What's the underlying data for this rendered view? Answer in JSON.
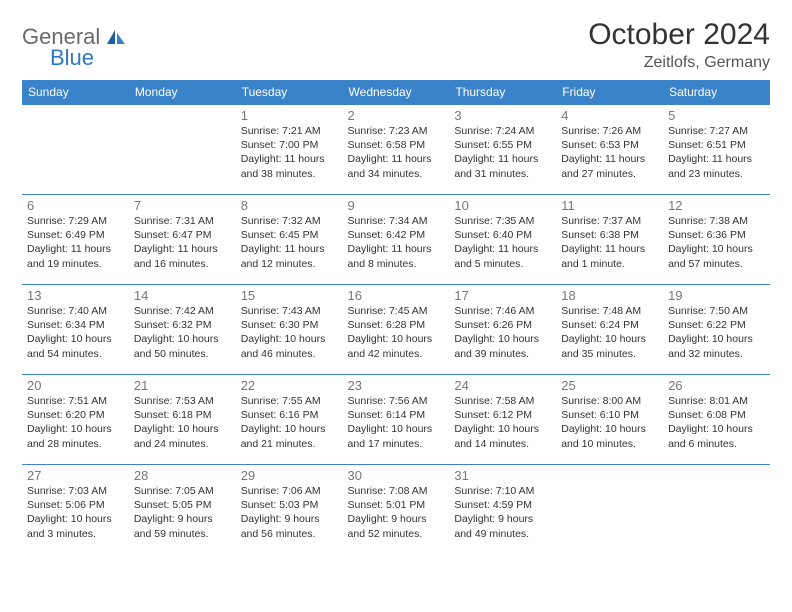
{
  "logo": {
    "general": "General",
    "blue": "Blue"
  },
  "title": "October 2024",
  "location": "Zeitlofs, Germany",
  "colors": {
    "header_bg": "#3a82c9",
    "header_text": "#ffffff",
    "border": "#3a82c9",
    "daynum": "#777777",
    "body_text": "#333333",
    "logo_gray": "#6b6b6b",
    "logo_blue": "#2f79c4",
    "page_bg": "#ffffff"
  },
  "day_headers": [
    "Sunday",
    "Monday",
    "Tuesday",
    "Wednesday",
    "Thursday",
    "Friday",
    "Saturday"
  ],
  "weeks": [
    [
      null,
      null,
      {
        "n": "1",
        "sr": "7:21 AM",
        "ss": "7:00 PM",
        "dl": "11 hours and 38 minutes."
      },
      {
        "n": "2",
        "sr": "7:23 AM",
        "ss": "6:58 PM",
        "dl": "11 hours and 34 minutes."
      },
      {
        "n": "3",
        "sr": "7:24 AM",
        "ss": "6:55 PM",
        "dl": "11 hours and 31 minutes."
      },
      {
        "n": "4",
        "sr": "7:26 AM",
        "ss": "6:53 PM",
        "dl": "11 hours and 27 minutes."
      },
      {
        "n": "5",
        "sr": "7:27 AM",
        "ss": "6:51 PM",
        "dl": "11 hours and 23 minutes."
      }
    ],
    [
      {
        "n": "6",
        "sr": "7:29 AM",
        "ss": "6:49 PM",
        "dl": "11 hours and 19 minutes."
      },
      {
        "n": "7",
        "sr": "7:31 AM",
        "ss": "6:47 PM",
        "dl": "11 hours and 16 minutes."
      },
      {
        "n": "8",
        "sr": "7:32 AM",
        "ss": "6:45 PM",
        "dl": "11 hours and 12 minutes."
      },
      {
        "n": "9",
        "sr": "7:34 AM",
        "ss": "6:42 PM",
        "dl": "11 hours and 8 minutes."
      },
      {
        "n": "10",
        "sr": "7:35 AM",
        "ss": "6:40 PM",
        "dl": "11 hours and 5 minutes."
      },
      {
        "n": "11",
        "sr": "7:37 AM",
        "ss": "6:38 PM",
        "dl": "11 hours and 1 minute."
      },
      {
        "n": "12",
        "sr": "7:38 AM",
        "ss": "6:36 PM",
        "dl": "10 hours and 57 minutes."
      }
    ],
    [
      {
        "n": "13",
        "sr": "7:40 AM",
        "ss": "6:34 PM",
        "dl": "10 hours and 54 minutes."
      },
      {
        "n": "14",
        "sr": "7:42 AM",
        "ss": "6:32 PM",
        "dl": "10 hours and 50 minutes."
      },
      {
        "n": "15",
        "sr": "7:43 AM",
        "ss": "6:30 PM",
        "dl": "10 hours and 46 minutes."
      },
      {
        "n": "16",
        "sr": "7:45 AM",
        "ss": "6:28 PM",
        "dl": "10 hours and 42 minutes."
      },
      {
        "n": "17",
        "sr": "7:46 AM",
        "ss": "6:26 PM",
        "dl": "10 hours and 39 minutes."
      },
      {
        "n": "18",
        "sr": "7:48 AM",
        "ss": "6:24 PM",
        "dl": "10 hours and 35 minutes."
      },
      {
        "n": "19",
        "sr": "7:50 AM",
        "ss": "6:22 PM",
        "dl": "10 hours and 32 minutes."
      }
    ],
    [
      {
        "n": "20",
        "sr": "7:51 AM",
        "ss": "6:20 PM",
        "dl": "10 hours and 28 minutes."
      },
      {
        "n": "21",
        "sr": "7:53 AM",
        "ss": "6:18 PM",
        "dl": "10 hours and 24 minutes."
      },
      {
        "n": "22",
        "sr": "7:55 AM",
        "ss": "6:16 PM",
        "dl": "10 hours and 21 minutes."
      },
      {
        "n": "23",
        "sr": "7:56 AM",
        "ss": "6:14 PM",
        "dl": "10 hours and 17 minutes."
      },
      {
        "n": "24",
        "sr": "7:58 AM",
        "ss": "6:12 PM",
        "dl": "10 hours and 14 minutes."
      },
      {
        "n": "25",
        "sr": "8:00 AM",
        "ss": "6:10 PM",
        "dl": "10 hours and 10 minutes."
      },
      {
        "n": "26",
        "sr": "8:01 AM",
        "ss": "6:08 PM",
        "dl": "10 hours and 6 minutes."
      }
    ],
    [
      {
        "n": "27",
        "sr": "7:03 AM",
        "ss": "5:06 PM",
        "dl": "10 hours and 3 minutes."
      },
      {
        "n": "28",
        "sr": "7:05 AM",
        "ss": "5:05 PM",
        "dl": "9 hours and 59 minutes."
      },
      {
        "n": "29",
        "sr": "7:06 AM",
        "ss": "5:03 PM",
        "dl": "9 hours and 56 minutes."
      },
      {
        "n": "30",
        "sr": "7:08 AM",
        "ss": "5:01 PM",
        "dl": "9 hours and 52 minutes."
      },
      {
        "n": "31",
        "sr": "7:10 AM",
        "ss": "4:59 PM",
        "dl": "9 hours and 49 minutes."
      },
      null,
      null
    ]
  ],
  "labels": {
    "sunrise": "Sunrise: ",
    "sunset": "Sunset: ",
    "daylight": "Daylight: "
  }
}
